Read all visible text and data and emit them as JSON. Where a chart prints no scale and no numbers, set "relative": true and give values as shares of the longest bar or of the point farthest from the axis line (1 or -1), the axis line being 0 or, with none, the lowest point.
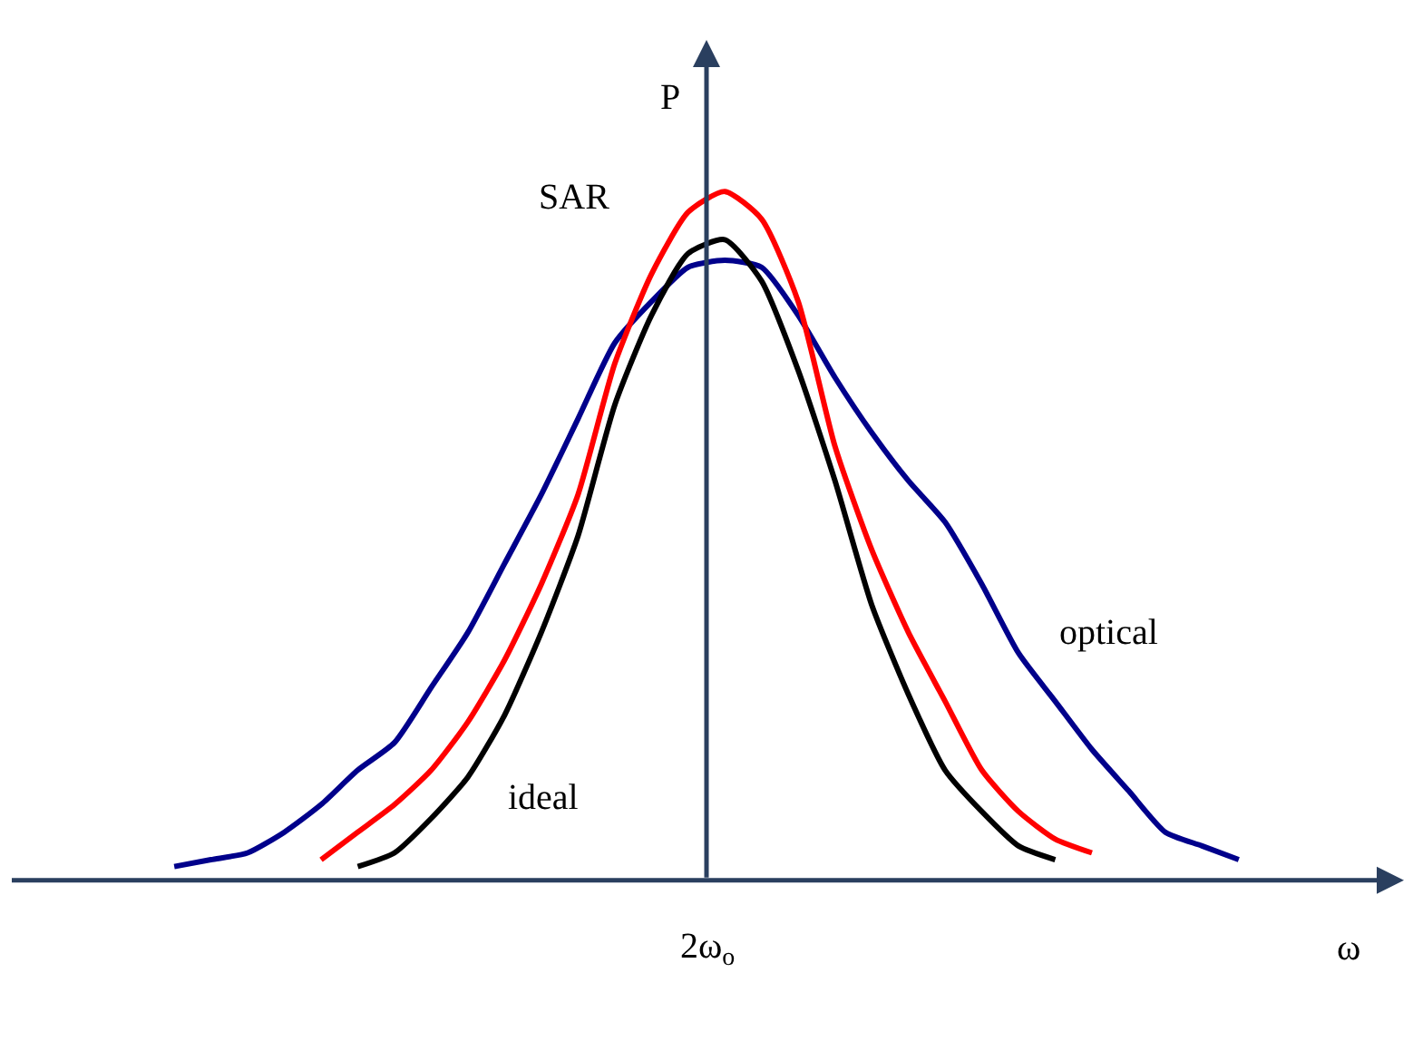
{
  "chart_data": {
    "type": "line",
    "relative": true,
    "xlabel": "ω",
    "ylabel": "P",
    "categories": [
      null,
      null,
      null,
      null,
      null,
      null,
      null,
      null,
      null,
      null,
      null,
      null,
      null,
      null,
      null,
      null,
      null,
      null,
      null,
      null,
      null,
      null,
      null,
      null,
      null,
      null,
      null,
      null,
      null,
      null
    ],
    "series": [
      {
        "name": "optical",
        "color": "#00008b",
        "values": [
          0.02,
          0.03,
          0.04,
          0.07,
          0.11,
          0.16,
          0.2,
          0.28,
          0.36,
          0.46,
          0.56,
          0.67,
          0.78,
          0.84,
          0.89,
          0.9,
          0.89,
          0.82,
          0.73,
          0.65,
          0.58,
          0.52,
          0.43,
          0.33,
          0.26,
          0.19,
          0.13,
          0.07,
          0.05,
          0.03
        ]
      },
      {
        "name": "SAR",
        "color": "#ff0000",
        "values": [
          null,
          null,
          null,
          null,
          0.03,
          0.07,
          0.11,
          0.16,
          0.23,
          0.32,
          0.43,
          0.56,
          0.75,
          0.88,
          0.97,
          1.0,
          0.96,
          0.84,
          0.63,
          0.48,
          0.36,
          0.26,
          0.16,
          0.1,
          0.06,
          0.04,
          null,
          null,
          null,
          null
        ]
      },
      {
        "name": "ideal",
        "color": "#000000",
        "values": [
          null,
          null,
          null,
          null,
          null,
          0.02,
          0.04,
          0.09,
          0.15,
          0.24,
          0.36,
          0.5,
          0.69,
          0.82,
          0.91,
          0.93,
          0.87,
          0.74,
          0.58,
          0.4,
          0.27,
          0.16,
          0.1,
          0.05,
          0.03,
          null,
          null,
          null,
          null,
          null
        ]
      }
    ],
    "annotations": [
      "2ω$_{o}$"
    ],
    "marker": "none",
    "line_style": "solid",
    "legend": false
  }
}
